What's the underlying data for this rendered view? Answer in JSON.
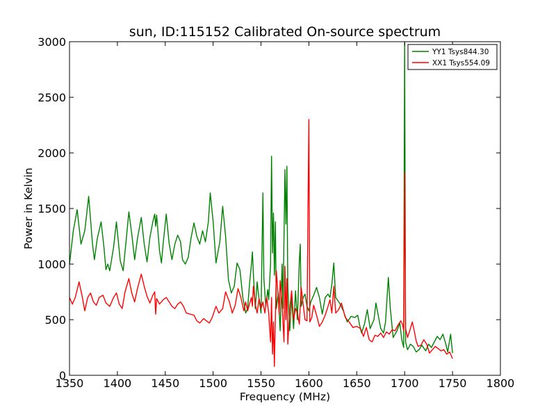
{
  "chart_data": {
    "type": "line",
    "title": "sun, ID:115152 Calibrated On-source spectrum",
    "xlabel": "Frequency (MHz)",
    "ylabel": "Power in Kelvin",
    "xlim": [
      1350,
      1800
    ],
    "ylim": [
      0,
      3000
    ],
    "xticks": [
      1350,
      1400,
      1450,
      1500,
      1550,
      1600,
      1650,
      1700,
      1750,
      1800
    ],
    "yticks": [
      0,
      500,
      1000,
      1500,
      2000,
      2500,
      3000
    ],
    "xtick_labels": [
      "1350",
      "1400",
      "1450",
      "1500",
      "1550",
      "1600",
      "1650",
      "1700",
      "1750",
      "1800"
    ],
    "ytick_labels": [
      "0",
      "500",
      "1000",
      "1500",
      "2000",
      "2500",
      "3000"
    ],
    "grid": false,
    "legend_position": "top-right",
    "series": [
      {
        "name": "YY1 Tsys844.30",
        "color": "#008000",
        "points": [
          [
            1350,
            1000
          ],
          [
            1354,
            1300
          ],
          [
            1358,
            1490
          ],
          [
            1362,
            1180
          ],
          [
            1366,
            1300
          ],
          [
            1370,
            1610
          ],
          [
            1374,
            1180
          ],
          [
            1376,
            1040
          ],
          [
            1379,
            1230
          ],
          [
            1383,
            1380
          ],
          [
            1386,
            1150
          ],
          [
            1388,
            950
          ],
          [
            1390,
            1000
          ],
          [
            1392,
            940
          ],
          [
            1396,
            1150
          ],
          [
            1399,
            1380
          ],
          [
            1403,
            1030
          ],
          [
            1406,
            940
          ],
          [
            1409,
            1200
          ],
          [
            1412,
            1470
          ],
          [
            1415,
            1270
          ],
          [
            1418,
            1040
          ],
          [
            1421,
            1230
          ],
          [
            1425,
            1420
          ],
          [
            1428,
            1180
          ],
          [
            1431,
            1020
          ],
          [
            1434,
            1240
          ],
          [
            1437,
            1380
          ],
          [
            1439,
            1450
          ],
          [
            1440,
            1340
          ],
          [
            1441,
            1440
          ],
          [
            1444,
            1120
          ],
          [
            1446,
            1010
          ],
          [
            1448,
            1200
          ],
          [
            1451,
            1450
          ],
          [
            1454,
            1190
          ],
          [
            1457,
            1040
          ],
          [
            1460,
            1180
          ],
          [
            1463,
            1260
          ],
          [
            1466,
            1200
          ],
          [
            1468,
            1040
          ],
          [
            1471,
            1000
          ],
          [
            1474,
            1060
          ],
          [
            1477,
            1240
          ],
          [
            1480,
            1370
          ],
          [
            1483,
            1250
          ],
          [
            1486,
            1180
          ],
          [
            1489,
            1300
          ],
          [
            1492,
            1200
          ],
          [
            1495,
            1380
          ],
          [
            1497,
            1640
          ],
          [
            1500,
            1380
          ],
          [
            1503,
            1010
          ],
          [
            1507,
            1200
          ],
          [
            1510,
            1520
          ],
          [
            1513,
            1250
          ],
          [
            1516,
            860
          ],
          [
            1519,
            740
          ],
          [
            1522,
            800
          ],
          [
            1525,
            1010
          ],
          [
            1528,
            950
          ],
          [
            1531,
            700
          ],
          [
            1534,
            560
          ],
          [
            1536,
            600
          ],
          [
            1538,
            820
          ],
          [
            1540,
            1000
          ],
          [
            1541,
            1110
          ],
          [
            1542,
            920
          ],
          [
            1544,
            600
          ],
          [
            1546,
            840
          ],
          [
            1548,
            680
          ],
          [
            1550,
            560
          ],
          [
            1552,
            1640
          ],
          [
            1553,
            870
          ],
          [
            1555,
            620
          ],
          [
            1557,
            770
          ],
          [
            1558,
            680
          ],
          [
            1560,
            1000
          ],
          [
            1561,
            1970
          ],
          [
            1562,
            1100
          ],
          [
            1563,
            1460
          ],
          [
            1564,
            900
          ],
          [
            1565,
            1380
          ],
          [
            1566,
            600
          ],
          [
            1568,
            740
          ],
          [
            1570,
            400
          ],
          [
            1572,
            1000
          ],
          [
            1573,
            600
          ],
          [
            1575,
            1850
          ],
          [
            1576,
            1360
          ],
          [
            1577,
            1880
          ],
          [
            1578,
            800
          ],
          [
            1580,
            400
          ],
          [
            1582,
            700
          ],
          [
            1584,
            420
          ],
          [
            1586,
            760
          ],
          [
            1588,
            500
          ],
          [
            1590,
            1030
          ],
          [
            1591,
            1180
          ],
          [
            1592,
            620
          ],
          [
            1594,
            700
          ],
          [
            1596,
            730
          ],
          [
            1598,
            620
          ],
          [
            1600,
            580
          ],
          [
            1602,
            660
          ],
          [
            1605,
            720
          ],
          [
            1608,
            790
          ],
          [
            1611,
            700
          ],
          [
            1614,
            550
          ],
          [
            1617,
            700
          ],
          [
            1620,
            730
          ],
          [
            1622,
            700
          ],
          [
            1624,
            820
          ],
          [
            1626,
            1010
          ],
          [
            1628,
            700
          ],
          [
            1632,
            650
          ],
          [
            1636,
            580
          ],
          [
            1640,
            480
          ],
          [
            1644,
            530
          ],
          [
            1648,
            520
          ],
          [
            1651,
            540
          ],
          [
            1653,
            450
          ],
          [
            1655,
            380
          ],
          [
            1658,
            460
          ],
          [
            1661,
            590
          ],
          [
            1664,
            420
          ],
          [
            1668,
            500
          ],
          [
            1670,
            650
          ],
          [
            1672,
            560
          ],
          [
            1675,
            420
          ],
          [
            1678,
            380
          ],
          [
            1680,
            480
          ],
          [
            1683,
            880
          ],
          [
            1685,
            600
          ],
          [
            1688,
            340
          ],
          [
            1692,
            400
          ],
          [
            1695,
            470
          ],
          [
            1697,
            320
          ],
          [
            1699,
            250
          ],
          [
            1700,
            2990
          ],
          [
            1701,
            300
          ],
          [
            1703,
            230
          ],
          [
            1706,
            280
          ],
          [
            1709,
            260
          ],
          [
            1712,
            210
          ],
          [
            1715,
            230
          ],
          [
            1718,
            270
          ],
          [
            1722,
            220
          ],
          [
            1725,
            280
          ],
          [
            1728,
            250
          ],
          [
            1731,
            300
          ],
          [
            1734,
            350
          ],
          [
            1737,
            320
          ],
          [
            1740,
            370
          ],
          [
            1743,
            280
          ],
          [
            1745,
            210
          ],
          [
            1748,
            370
          ],
          [
            1750,
            200
          ]
        ]
      },
      {
        "name": "XX1 Tsys554.09",
        "color": "#ff0000",
        "points": [
          [
            1350,
            700
          ],
          [
            1353,
            640
          ],
          [
            1356,
            700
          ],
          [
            1360,
            840
          ],
          [
            1363,
            720
          ],
          [
            1366,
            580
          ],
          [
            1369,
            700
          ],
          [
            1372,
            740
          ],
          [
            1375,
            660
          ],
          [
            1378,
            630
          ],
          [
            1381,
            700
          ],
          [
            1385,
            720
          ],
          [
            1388,
            650
          ],
          [
            1392,
            620
          ],
          [
            1396,
            700
          ],
          [
            1399,
            740
          ],
          [
            1402,
            640
          ],
          [
            1405,
            600
          ],
          [
            1408,
            750
          ],
          [
            1412,
            870
          ],
          [
            1415,
            740
          ],
          [
            1418,
            660
          ],
          [
            1421,
            780
          ],
          [
            1425,
            910
          ],
          [
            1428,
            800
          ],
          [
            1431,
            710
          ],
          [
            1434,
            650
          ],
          [
            1437,
            720
          ],
          [
            1439,
            750
          ],
          [
            1440,
            550
          ],
          [
            1441,
            690
          ],
          [
            1444,
            640
          ],
          [
            1448,
            680
          ],
          [
            1451,
            700
          ],
          [
            1454,
            660
          ],
          [
            1457,
            620
          ],
          [
            1460,
            600
          ],
          [
            1463,
            640
          ],
          [
            1466,
            660
          ],
          [
            1469,
            620
          ],
          [
            1472,
            560
          ],
          [
            1476,
            550
          ],
          [
            1480,
            540
          ],
          [
            1483,
            490
          ],
          [
            1486,
            470
          ],
          [
            1490,
            510
          ],
          [
            1493,
            490
          ],
          [
            1496,
            470
          ],
          [
            1499,
            520
          ],
          [
            1503,
            620
          ],
          [
            1506,
            560
          ],
          [
            1510,
            600
          ],
          [
            1513,
            750
          ],
          [
            1517,
            660
          ],
          [
            1520,
            560
          ],
          [
            1523,
            630
          ],
          [
            1526,
            780
          ],
          [
            1529,
            700
          ],
          [
            1532,
            580
          ],
          [
            1534,
            660
          ],
          [
            1536,
            580
          ],
          [
            1538,
            640
          ],
          [
            1540,
            700
          ],
          [
            1541,
            620
          ],
          [
            1542,
            800
          ],
          [
            1544,
            640
          ],
          [
            1546,
            560
          ],
          [
            1548,
            690
          ],
          [
            1550,
            600
          ],
          [
            1552,
            660
          ],
          [
            1554,
            560
          ],
          [
            1556,
            700
          ],
          [
            1558,
            560
          ],
          [
            1560,
            300
          ],
          [
            1561,
            700
          ],
          [
            1562,
            190
          ],
          [
            1563,
            480
          ],
          [
            1564,
            80
          ],
          [
            1566,
            940
          ],
          [
            1568,
            700
          ],
          [
            1569,
            550
          ],
          [
            1570,
            850
          ],
          [
            1572,
            640
          ],
          [
            1574,
            300
          ],
          [
            1575,
            980
          ],
          [
            1576,
            500
          ],
          [
            1577,
            870
          ],
          [
            1578,
            280
          ],
          [
            1580,
            600
          ],
          [
            1582,
            760
          ],
          [
            1584,
            500
          ],
          [
            1586,
            600
          ],
          [
            1588,
            560
          ],
          [
            1590,
            460
          ],
          [
            1592,
            790
          ],
          [
            1594,
            640
          ],
          [
            1596,
            500
          ],
          [
            1598,
            490
          ],
          [
            1600,
            2300
          ],
          [
            1601,
            480
          ],
          [
            1603,
            520
          ],
          [
            1605,
            630
          ],
          [
            1608,
            540
          ],
          [
            1611,
            440
          ],
          [
            1614,
            480
          ],
          [
            1617,
            540
          ],
          [
            1620,
            620
          ],
          [
            1622,
            680
          ],
          [
            1624,
            560
          ],
          [
            1626,
            800
          ],
          [
            1628,
            560
          ],
          [
            1631,
            590
          ],
          [
            1634,
            650
          ],
          [
            1638,
            520
          ],
          [
            1642,
            480
          ],
          [
            1646,
            430
          ],
          [
            1650,
            440
          ],
          [
            1654,
            420
          ],
          [
            1657,
            350
          ],
          [
            1660,
            430
          ],
          [
            1663,
            320
          ],
          [
            1666,
            300
          ],
          [
            1669,
            360
          ],
          [
            1672,
            350
          ],
          [
            1675,
            380
          ],
          [
            1678,
            340
          ],
          [
            1681,
            390
          ],
          [
            1684,
            370
          ],
          [
            1687,
            410
          ],
          [
            1690,
            400
          ],
          [
            1693,
            450
          ],
          [
            1696,
            490
          ],
          [
            1698,
            450
          ],
          [
            1699,
            400
          ],
          [
            1700,
            1820
          ],
          [
            1701,
            420
          ],
          [
            1703,
            340
          ],
          [
            1706,
            420
          ],
          [
            1708,
            480
          ],
          [
            1710,
            400
          ],
          [
            1712,
            310
          ],
          [
            1714,
            260
          ],
          [
            1717,
            270
          ],
          [
            1720,
            320
          ],
          [
            1723,
            280
          ],
          [
            1726,
            200
          ],
          [
            1729,
            230
          ],
          [
            1732,
            260
          ],
          [
            1735,
            240
          ],
          [
            1738,
            220
          ],
          [
            1741,
            230
          ],
          [
            1744,
            190
          ],
          [
            1747,
            210
          ],
          [
            1750,
            150
          ]
        ]
      }
    ]
  }
}
